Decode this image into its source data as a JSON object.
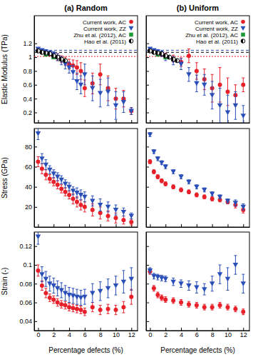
{
  "chart_data": [
    {
      "type": "scatter",
      "title": "(a) Random",
      "ylabel": "Elastic Modulus (TPa)",
      "xlim": [
        -0.5,
        12.8
      ],
      "xticks": [
        0,
        2,
        4,
        6,
        8,
        10,
        12
      ],
      "ylim": [
        0.05,
        1.6
      ],
      "yticks": [
        0.2,
        0.4,
        0.6,
        0.8,
        1,
        1.2
      ],
      "tick_labels": "y",
      "legend": "upper right",
      "reference_lines": [
        {
          "value": 1.1,
          "color": "#2a4fb8"
        },
        {
          "value": 1.07,
          "color": "#000000"
        },
        {
          "value": 1.01,
          "color": "#e8202a"
        }
      ],
      "series": [
        {
          "name": "Current work, AC",
          "color": "#e8202a",
          "marker": "circle",
          "x": [
            0,
            0.5,
            1,
            1.5,
            2,
            2.5,
            3,
            3.5,
            4,
            4.5,
            5,
            5.5,
            6,
            7,
            8,
            9,
            10,
            11,
            12
          ],
          "values": [
            1.1,
            1.09,
            1.07,
            1.05,
            1.03,
            1.0,
            0.97,
            0.94,
            0.9,
            0.88,
            0.85,
            0.8,
            0.55,
            0.62,
            0.75,
            0.55,
            0.4,
            0.4,
            0.22
          ],
          "errors": [
            0.02,
            0.02,
            0.03,
            0.03,
            0.04,
            0.05,
            0.05,
            0.06,
            0.07,
            0.08,
            0.1,
            0.12,
            0.12,
            0.15,
            0.15,
            0.18,
            0.15,
            0.12,
            0.05
          ]
        },
        {
          "name": "Current work, ZZ",
          "color": "#2a4fb8",
          "marker": "triangle-down",
          "x": [
            0,
            0.5,
            1,
            1.5,
            2,
            2.5,
            3,
            3.5,
            4,
            4.5,
            5,
            5.5,
            6,
            7,
            8,
            9,
            10,
            11,
            12
          ],
          "values": [
            1.12,
            1.1,
            1.08,
            1.06,
            1.04,
            1.0,
            0.95,
            0.9,
            0.85,
            0.78,
            0.65,
            0.6,
            0.75,
            0.55,
            0.48,
            0.5,
            0.3,
            0.35,
            0.22
          ],
          "errors": [
            0.02,
            0.02,
            0.03,
            0.03,
            0.04,
            0.05,
            0.06,
            0.07,
            0.08,
            0.1,
            0.12,
            0.13,
            0.15,
            0.18,
            0.2,
            0.2,
            0.2,
            0.15,
            0.05
          ]
        },
        {
          "name": "Zhu et al. (2012), AC",
          "color": "#1e9a3a",
          "marker": "square",
          "x": [
            1,
            2,
            3
          ],
          "values": [
            1.04,
            1.0,
            0.97
          ]
        },
        {
          "name": "Hao et al. (2011)",
          "color": "#000000",
          "marker": "half-circle",
          "x": [
            0,
            0.5,
            1,
            1.5,
            2,
            2.5,
            3,
            3.5
          ],
          "values": [
            1.09,
            1.07,
            1.06,
            1.05,
            1.02,
            1.0,
            0.97,
            0.95
          ]
        }
      ]
    },
    {
      "type": "scatter",
      "title": "(b) Uniform",
      "xlim": [
        -0.5,
        12.8
      ],
      "xticks": [
        0,
        2,
        4,
        6,
        8,
        10,
        12
      ],
      "ylim": [
        0.05,
        1.6
      ],
      "yticks": [
        0.2,
        0.4,
        0.6,
        0.8,
        1,
        1.2
      ],
      "tick_labels": false,
      "legend": "upper right",
      "reference_lines": [
        {
          "value": 1.1,
          "color": "#2a4fb8"
        },
        {
          "value": 1.07,
          "color": "#000000"
        },
        {
          "value": 1.01,
          "color": "#e8202a"
        }
      ],
      "series": [
        {
          "name": "Current work, AC",
          "color": "#e8202a",
          "marker": "circle",
          "x": [
            0,
            0.5,
            1,
            1.5,
            2,
            3,
            4,
            5,
            6,
            7,
            8,
            9,
            10,
            11,
            12
          ],
          "values": [
            1.1,
            1.08,
            1.06,
            1.04,
            1.02,
            0.98,
            0.93,
            1.02,
            0.8,
            0.68,
            0.55,
            0.6,
            0.5,
            0.45,
            0.6
          ],
          "errors": [
            0.02,
            0.02,
            0.03,
            0.03,
            0.04,
            0.05,
            0.06,
            0.1,
            0.12,
            0.15,
            0.2,
            0.25,
            0.2,
            0.15,
            0.1
          ]
        },
        {
          "name": "Current work, ZZ",
          "color": "#2a4fb8",
          "marker": "triangle-down",
          "x": [
            0,
            0.5,
            1,
            1.5,
            2,
            3,
            4,
            5,
            6,
            7,
            8,
            9,
            10,
            11,
            12
          ],
          "values": [
            1.12,
            1.1,
            1.08,
            1.05,
            1.0,
            0.95,
            0.9,
            0.75,
            0.62,
            0.6,
            0.45,
            0.3,
            0.2,
            0.3,
            0.15
          ],
          "errors": [
            0.02,
            0.02,
            0.03,
            0.04,
            0.05,
            0.06,
            0.08,
            0.1,
            0.12,
            0.15,
            0.2,
            0.25,
            0.25,
            0.2,
            0.15
          ]
        },
        {
          "name": "Zhu et al. (2012), AC",
          "color": "#1e9a3a",
          "marker": "square",
          "x": [
            1,
            2,
            3
          ],
          "values": [
            1.04,
            1.0,
            0.97
          ]
        },
        {
          "name": "Hao et al. (2011)",
          "color": "#000000",
          "marker": "half-circle",
          "x": [
            0,
            0.5,
            1,
            1.5,
            2,
            2.5,
            3,
            3.5
          ],
          "values": [
            1.09,
            1.07,
            1.06,
            1.05,
            1.02,
            1.0,
            0.97,
            0.95
          ]
        }
      ]
    },
    {
      "type": "scatter",
      "ylabel": "Stress (GPa)",
      "xlim": [
        -0.5,
        12.8
      ],
      "xticks": [
        0,
        2,
        4,
        6,
        8,
        10,
        12
      ],
      "ylim": [
        0,
        98
      ],
      "yticks": [
        20,
        40,
        60,
        80
      ],
      "tick_labels": "y",
      "series": [
        {
          "color": "#e8202a",
          "marker": "circle",
          "x": [
            0,
            0.5,
            1,
            1.5,
            2,
            2.5,
            3,
            3.5,
            4,
            4.5,
            5,
            5.5,
            6,
            7,
            8,
            9,
            10,
            11,
            12
          ],
          "values": [
            65,
            58,
            52,
            48,
            45,
            42,
            38,
            35,
            32,
            28,
            25,
            22,
            20,
            17,
            14,
            11,
            9,
            7,
            5
          ],
          "errors": [
            5,
            5,
            5,
            4,
            4,
            4,
            4,
            4,
            4,
            5,
            5,
            5,
            5,
            6,
            6,
            5,
            5,
            4,
            3
          ]
        },
        {
          "color": "#2a4fb8",
          "marker": "triangle-down",
          "x": [
            0,
            0.5,
            1,
            1.5,
            2,
            2.5,
            3,
            3.5,
            4,
            4.5,
            5,
            5.5,
            6,
            7,
            8,
            9,
            10,
            11,
            12
          ],
          "values": [
            93,
            68,
            62,
            57,
            53,
            50,
            47,
            43,
            40,
            36,
            34,
            32,
            30,
            26,
            22,
            20,
            17,
            15,
            11
          ],
          "errors": [
            6,
            5,
            5,
            4,
            4,
            4,
            4,
            4,
            4,
            4,
            5,
            5,
            5,
            5,
            6,
            5,
            5,
            4,
            3
          ]
        }
      ]
    },
    {
      "type": "scatter",
      "xlim": [
        -0.5,
        12.8
      ],
      "xticks": [
        0,
        2,
        4,
        6,
        8,
        10,
        12
      ],
      "ylim": [
        0,
        98
      ],
      "yticks": [
        20,
        40,
        60,
        80
      ],
      "tick_labels": false,
      "series": [
        {
          "color": "#e8202a",
          "marker": "circle",
          "x": [
            0,
            0.5,
            1,
            1.5,
            2,
            3,
            4,
            5,
            6,
            7,
            8,
            9,
            10,
            11,
            12
          ],
          "values": [
            65,
            55,
            50,
            46,
            43,
            40,
            37,
            35,
            32,
            30,
            28,
            27,
            25,
            22,
            17
          ],
          "errors": [
            2,
            2,
            2,
            2,
            2,
            2,
            2,
            2,
            2,
            2,
            2,
            2,
            2,
            3,
            3
          ]
        },
        {
          "color": "#2a4fb8",
          "marker": "triangle-down",
          "x": [
            0,
            0.5,
            1,
            1.5,
            2,
            3,
            4,
            5,
            6,
            7,
            8,
            9,
            10,
            11,
            12
          ],
          "values": [
            92,
            75,
            68,
            64,
            60,
            55,
            50,
            45,
            40,
            37,
            33,
            30,
            26,
            24,
            20
          ],
          "errors": [
            2,
            2,
            2,
            2,
            2,
            2,
            2,
            2,
            2,
            2,
            2,
            2,
            2,
            3,
            3
          ]
        }
      ]
    },
    {
      "type": "scatter",
      "ylabel": "Strain (-)",
      "xlabel": "Percentage defects (%)",
      "xlim": [
        -0.5,
        12.8
      ],
      "xticks": [
        0,
        2,
        4,
        6,
        8,
        10,
        12
      ],
      "ylim": [
        0.03,
        0.135
      ],
      "yticks": [
        0.04,
        0.06,
        0.08,
        0.1,
        0.12
      ],
      "tick_labels": true,
      "series": [
        {
          "color": "#e8202a",
          "marker": "circle",
          "x": [
            0,
            0.5,
            1,
            1.5,
            2,
            2.5,
            3,
            3.5,
            4,
            4.5,
            5,
            5.5,
            6,
            7,
            8,
            9,
            10,
            11,
            12
          ],
          "values": [
            0.094,
            0.078,
            0.07,
            0.065,
            0.063,
            0.06,
            0.058,
            0.057,
            0.055,
            0.054,
            0.053,
            0.052,
            0.05,
            0.055,
            0.052,
            0.053,
            0.052,
            0.055,
            0.066
          ],
          "errors": [
            0.006,
            0.005,
            0.005,
            0.004,
            0.004,
            0.004,
            0.004,
            0.004,
            0.004,
            0.004,
            0.004,
            0.004,
            0.004,
            0.005,
            0.005,
            0.005,
            0.005,
            0.006,
            0.008
          ]
        },
        {
          "color": "#2a4fb8",
          "marker": "triangle-down",
          "x": [
            0,
            0.5,
            1,
            1.5,
            2,
            2.5,
            3,
            3.5,
            4,
            4.5,
            5,
            5.5,
            6,
            7,
            8,
            9,
            10,
            11,
            12
          ],
          "values": [
            0.13,
            0.09,
            0.085,
            0.08,
            0.078,
            0.075,
            0.073,
            0.07,
            0.068,
            0.067,
            0.066,
            0.065,
            0.066,
            0.07,
            0.072,
            0.075,
            0.078,
            0.082,
            0.085
          ],
          "errors": [
            0.008,
            0.008,
            0.008,
            0.008,
            0.008,
            0.008,
            0.008,
            0.008,
            0.008,
            0.008,
            0.008,
            0.008,
            0.008,
            0.01,
            0.01,
            0.01,
            0.01,
            0.012,
            0.012
          ]
        }
      ]
    },
    {
      "type": "scatter",
      "xlabel": "Percentage defects (%)",
      "xlim": [
        -0.5,
        12.8
      ],
      "xticks": [
        0,
        2,
        4,
        6,
        8,
        10,
        12
      ],
      "ylim": [
        0.03,
        0.135
      ],
      "yticks": [
        0.04,
        0.06,
        0.08,
        0.1,
        0.12
      ],
      "tick_labels": "x",
      "series": [
        {
          "color": "#e8202a",
          "marker": "circle",
          "x": [
            0,
            0.5,
            1,
            1.5,
            2,
            3,
            4,
            5,
            6,
            7,
            8,
            9,
            10,
            11,
            12
          ],
          "values": [
            0.093,
            0.075,
            0.068,
            0.065,
            0.063,
            0.062,
            0.06,
            0.058,
            0.057,
            0.055,
            0.055,
            0.057,
            0.055,
            0.053,
            0.05
          ],
          "errors": [
            0.003,
            0.003,
            0.003,
            0.003,
            0.003,
            0.003,
            0.003,
            0.003,
            0.003,
            0.003,
            0.003,
            0.003,
            0.003,
            0.003,
            0.003
          ]
        },
        {
          "color": "#2a4fb8",
          "marker": "triangle-down",
          "x": [
            0,
            0.5,
            1,
            1.5,
            2,
            3,
            4,
            5,
            6,
            7,
            8,
            9,
            10,
            11,
            12
          ],
          "values": [
            0.094,
            0.088,
            0.087,
            0.086,
            0.085,
            0.082,
            0.08,
            0.078,
            0.076,
            0.074,
            0.08,
            0.09,
            0.085,
            0.1,
            0.08
          ],
          "errors": [
            0.003,
            0.003,
            0.003,
            0.003,
            0.003,
            0.004,
            0.004,
            0.005,
            0.006,
            0.006,
            0.008,
            0.01,
            0.012,
            0.01,
            0.01
          ]
        }
      ]
    }
  ]
}
